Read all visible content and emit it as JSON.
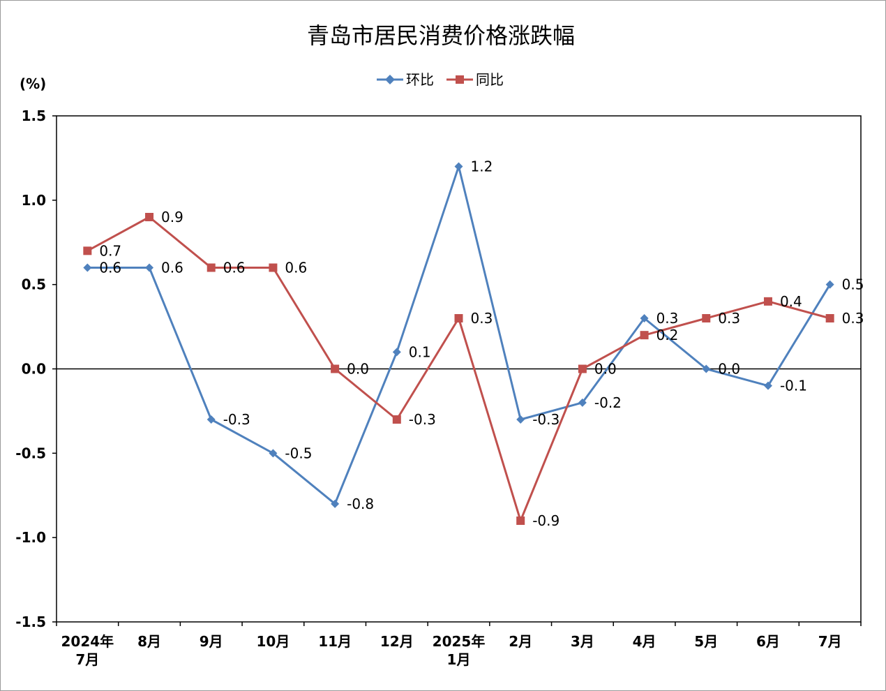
{
  "chart_data": {
    "type": "line",
    "title": "青岛市居民消费价格涨跌幅",
    "y_unit": "(%)",
    "ylim": [
      -1.5,
      1.5
    ],
    "yticks": [
      "1.5",
      "1.0",
      "0.5",
      "0.0",
      "-0.5",
      "-1.0",
      "-1.5"
    ],
    "ytick_values": [
      1.5,
      1.0,
      0.5,
      0.0,
      -0.5,
      -1.0,
      -1.5
    ],
    "categories": [
      [
        "2024年",
        "7月"
      ],
      [
        "8月"
      ],
      [
        "9月"
      ],
      [
        "10月"
      ],
      [
        "11月"
      ],
      [
        "12月"
      ],
      [
        "2025年",
        "1月"
      ],
      [
        "2月"
      ],
      [
        "3月"
      ],
      [
        "4月"
      ],
      [
        "5月"
      ],
      [
        "6月"
      ],
      [
        "7月"
      ]
    ],
    "legend_position": "top-center",
    "grid": false,
    "series": [
      {
        "name": "环比",
        "color": "#4F81BD",
        "marker": "diamond",
        "values": [
          0.6,
          0.6,
          -0.3,
          -0.5,
          -0.8,
          0.1,
          1.2,
          -0.3,
          -0.2,
          0.3,
          0.0,
          -0.1,
          0.5
        ],
        "labels": [
          "0.6",
          "0.6",
          "-0.3",
          "-0.5",
          "-0.8",
          "0.1",
          "1.2",
          "-0.3",
          "-0.2",
          "0.3",
          "0.0",
          "-0.1",
          "0.5"
        ]
      },
      {
        "name": "同比",
        "color": "#C0504D",
        "marker": "square",
        "values": [
          0.7,
          0.9,
          0.6,
          0.6,
          0.0,
          -0.3,
          0.3,
          -0.9,
          0.0,
          0.2,
          0.3,
          0.4,
          0.3
        ],
        "labels": [
          "0.7",
          "0.9",
          "0.6",
          "0.6",
          "0.0",
          "-0.3",
          "0.3",
          "-0.9",
          "0.0",
          "0.2",
          "0.3",
          "0.4",
          "0.3"
        ]
      }
    ]
  }
}
